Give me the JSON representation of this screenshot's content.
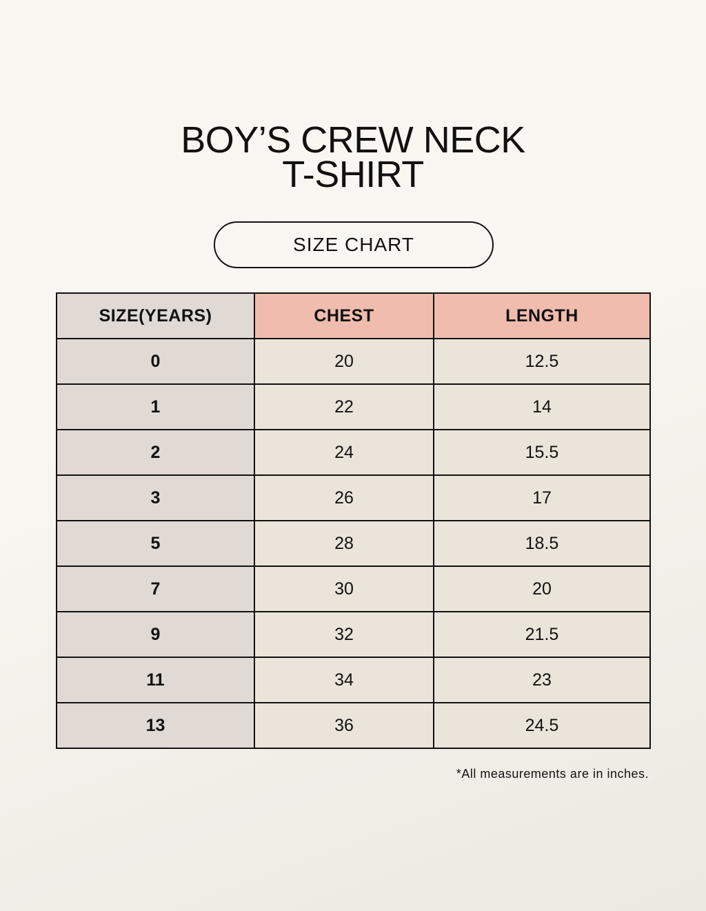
{
  "title_line1": "BOY’S CREW NECK",
  "title_line2": "T-SHIRT",
  "subtitle": "SIZE CHART",
  "colors": {
    "header_pink": "#efbcae",
    "size_column": "#e0d9d4",
    "value_cells": "#ebe4da"
  },
  "table": {
    "headers": [
      "SIZE(YEARS)",
      "CHEST",
      "LENGTH"
    ],
    "rows": [
      [
        "0",
        "20",
        "12.5"
      ],
      [
        "1",
        "22",
        "14"
      ],
      [
        "2",
        "24",
        "15.5"
      ],
      [
        "3",
        "26",
        "17"
      ],
      [
        "5",
        "28",
        "18.5"
      ],
      [
        "7",
        "30",
        "20"
      ],
      [
        "9",
        "32",
        "21.5"
      ],
      [
        "11",
        "34",
        "23"
      ],
      [
        "13",
        "36",
        "24.5"
      ]
    ]
  },
  "footnote": "*All measurements are in inches."
}
